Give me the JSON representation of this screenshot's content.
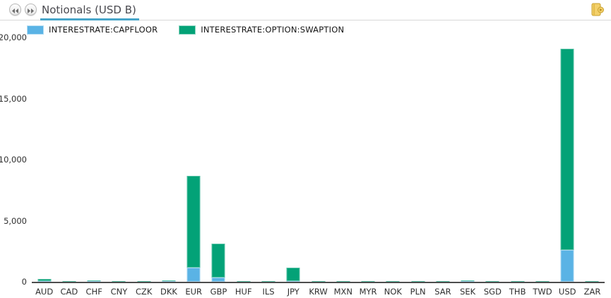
{
  "header": {
    "tab_title": "Notionals (USD B)"
  },
  "chart_data": {
    "type": "bar",
    "stacked": true,
    "title": "Notionals (USD B)",
    "xlabel": "",
    "ylabel": "",
    "ylim": [
      0,
      20000
    ],
    "yticks": [
      "20,000",
      "15,000",
      "10,000",
      "5,000",
      "0"
    ],
    "grid": "off",
    "legend_position": "top-left",
    "categories": [
      "AUD",
      "CAD",
      "CHF",
      "CNY",
      "CZK",
      "DKK",
      "EUR",
      "GBP",
      "HUF",
      "ILS",
      "JPY",
      "KRW",
      "MXN",
      "MYR",
      "NOK",
      "PLN",
      "SAR",
      "SEK",
      "SGD",
      "THB",
      "TWD",
      "USD",
      "ZAR"
    ],
    "series": [
      {
        "name": "INTERESTRATE:CAPFLOOR",
        "color": "#5ab3e5",
        "values": [
          10,
          0,
          5,
          0,
          0,
          5,
          1150,
          350,
          0,
          0,
          30,
          0,
          0,
          0,
          0,
          0,
          0,
          10,
          0,
          0,
          0,
          2600,
          0
        ]
      },
      {
        "name": "INTERESTRATE:OPTION:SWAPTION",
        "color": "#03a277",
        "values": [
          190,
          40,
          30,
          30,
          20,
          30,
          7450,
          2750,
          25,
          10,
          1070,
          80,
          25,
          10,
          25,
          20,
          10,
          40,
          20,
          25,
          25,
          16400,
          30
        ]
      }
    ]
  }
}
